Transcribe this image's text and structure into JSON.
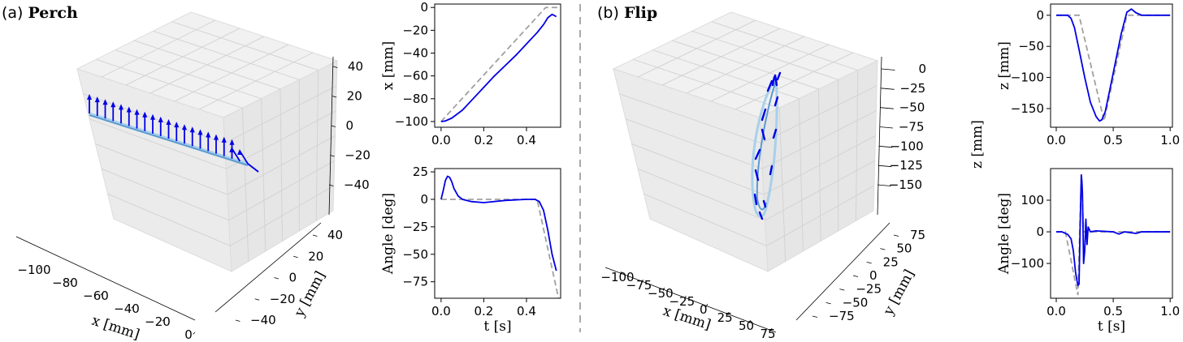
{
  "panels": [
    {
      "letter": "(a)",
      "name": "Perch"
    },
    {
      "letter": "(b)",
      "name": "Flip"
    }
  ],
  "colors": {
    "actual": "#0000e6",
    "reference": "#a0a0a0",
    "path_light": "#a8d0ea",
    "path_mid": "#5b9bd1",
    "pane": "#f1f1f1",
    "grid": "#d3d3d3"
  },
  "chart_data": [
    {
      "id": "perch-3d",
      "type": "scatter",
      "is_3d": true,
      "xlabel": "x [mm]",
      "ylabel": "y [mm]",
      "zlabel": "",
      "x_ticks": [
        "−100",
        "−80",
        "−60",
        "−40",
        "−20",
        "0"
      ],
      "y_ticks": [
        "−40",
        "−20",
        "0",
        "20",
        "40"
      ],
      "z_ticks": [
        "40",
        "20",
        "0",
        "−20",
        "−40"
      ],
      "xlim": [
        -100,
        0
      ],
      "ylim": [
        -40,
        40
      ],
      "zlim": [
        -40,
        40
      ],
      "path": {
        "x": [
          -100,
          -90,
          -80,
          -70,
          -60,
          -50,
          -40,
          -30,
          -20,
          -10,
          0
        ],
        "y": [
          0,
          0,
          0,
          0,
          0,
          0,
          0,
          0,
          0,
          0,
          0
        ],
        "z": [
          0,
          0,
          0,
          0,
          0,
          0,
          0,
          0,
          0,
          0,
          -10
        ]
      },
      "arrow_count": 21
    },
    {
      "id": "perch-x",
      "type": "line",
      "xlabel": "",
      "ylabel": "x [mm]",
      "x_ticks": [
        "0.0",
        "0.2",
        "0.4"
      ],
      "y_ticks": [
        "0",
        "−20",
        "−40",
        "−60",
        "−80",
        "−100"
      ],
      "xlim": [
        -0.03,
        0.56
      ],
      "ylim": [
        -105,
        3
      ],
      "series": [
        {
          "x": [
            0.0,
            0.02,
            0.05,
            0.1,
            0.15,
            0.2,
            0.25,
            0.3,
            0.35,
            0.4,
            0.45,
            0.48,
            0.5,
            0.52,
            0.54
          ],
          "y": [
            -100,
            -99.5,
            -97,
            -90,
            -80,
            -70,
            -60,
            -51,
            -42,
            -32,
            -22,
            -15,
            -9,
            -6,
            -8
          ]
        },
        {
          "x": [
            0.0,
            0.49,
            0.55
          ],
          "y": [
            -100,
            0,
            0
          ]
        }
      ]
    },
    {
      "id": "perch-angle",
      "type": "line",
      "xlabel": "t [s]",
      "ylabel": "Angle [deg]",
      "x_ticks": [
        "0.0",
        "0.2",
        "0.4"
      ],
      "y_ticks": [
        "25",
        "0",
        "−25",
        "−50",
        "−75"
      ],
      "xlim": [
        -0.03,
        0.56
      ],
      "ylim": [
        -90,
        28
      ],
      "series": [
        {
          "x": [
            0.0,
            0.01,
            0.02,
            0.03,
            0.04,
            0.05,
            0.06,
            0.08,
            0.1,
            0.14,
            0.2,
            0.3,
            0.4,
            0.44,
            0.46,
            0.48,
            0.5,
            0.52,
            0.54
          ],
          "y": [
            0,
            8,
            17,
            21,
            20,
            16,
            10,
            3,
            0,
            -2,
            -3,
            -1,
            0,
            0,
            -2,
            -10,
            -28,
            -50,
            -65
          ]
        },
        {
          "x": [
            0.0,
            0.45,
            0.55
          ],
          "y": [
            0,
            0,
            -90
          ]
        }
      ]
    },
    {
      "id": "flip-3d",
      "type": "scatter",
      "is_3d": true,
      "xlabel": "x [mm]",
      "ylabel": "y [mm]",
      "zlabel": "z [mm]",
      "x_ticks": [
        "−100",
        "−75",
        "−50",
        "−25",
        "0",
        "25",
        "50",
        "75"
      ],
      "y_ticks": [
        "−75",
        "−50",
        "−25",
        "0",
        "25",
        "50",
        "75"
      ],
      "z_ticks": [
        "0",
        "−25",
        "−50",
        "−75",
        "−100",
        "−125",
        "−150"
      ],
      "xlim": [
        -100,
        75
      ],
      "ylim": [
        -75,
        75
      ],
      "zlim": [
        -165,
        10
      ],
      "path": {
        "x": [
          0,
          5,
          10,
          5,
          0,
          -5,
          -10,
          -5,
          0
        ],
        "y": [
          0,
          0,
          0,
          0,
          0,
          0,
          0,
          0,
          0
        ],
        "z": [
          0,
          -40,
          -100,
          -150,
          -170,
          -150,
          -90,
          -40,
          0
        ]
      },
      "arrow_count": 14
    },
    {
      "id": "flip-z",
      "type": "line",
      "xlabel": "",
      "ylabel": "z [mm]",
      "x_ticks": [
        "0.0",
        "0.5",
        "1.0"
      ],
      "y_ticks": [
        "0",
        "−50",
        "−100",
        "−150"
      ],
      "xlim": [
        -0.05,
        1.02
      ],
      "ylim": [
        -180,
        18
      ],
      "series": [
        {
          "x": [
            0.0,
            0.1,
            0.13,
            0.16,
            0.2,
            0.25,
            0.3,
            0.35,
            0.38,
            0.4,
            0.43,
            0.47,
            0.52,
            0.57,
            0.62,
            0.66,
            0.7,
            0.75,
            0.8,
            1.0
          ],
          "y": [
            0,
            0,
            -5,
            -20,
            -55,
            -100,
            -140,
            -163,
            -170,
            -168,
            -155,
            -120,
            -75,
            -30,
            5,
            10,
            4,
            0,
            0,
            0
          ]
        },
        {
          "x": [
            0.0,
            0.2,
            0.42,
            0.62,
            1.0
          ],
          "y": [
            0,
            0,
            -170,
            0,
            0
          ]
        }
      ]
    },
    {
      "id": "flip-angle",
      "type": "line",
      "xlabel": "t [s]",
      "ylabel": "Angle [deg]",
      "x_ticks": [
        "0.0",
        "0.5",
        "1.0"
      ],
      "y_ticks": [
        "100",
        "0",
        "−100"
      ],
      "xlim": [
        -0.05,
        1.02
      ],
      "ylim": [
        -210,
        200
      ],
      "series": [
        {
          "x": [
            0.0,
            0.05,
            0.1,
            0.13,
            0.15,
            0.17,
            0.19,
            0.2,
            0.21,
            0.22,
            0.225,
            0.23,
            0.24,
            0.25,
            0.26,
            0.27,
            0.28,
            0.3,
            0.35,
            0.5,
            0.55,
            0.6,
            0.7,
            0.75,
            0.8,
            1.0
          ],
          "y": [
            0,
            0,
            -8,
            -22,
            -60,
            -130,
            -170,
            -165,
            20,
            180,
            160,
            120,
            -100,
            -60,
            40,
            -40,
            15,
            0,
            3,
            0,
            -7,
            0,
            -5,
            0,
            0,
            0
          ]
        },
        {
          "x": [
            0.0,
            0.08,
            0.19,
            0.22,
            0.24,
            1.0
          ],
          "y": [
            0,
            0,
            -200,
            180,
            0,
            0
          ]
        }
      ]
    }
  ]
}
